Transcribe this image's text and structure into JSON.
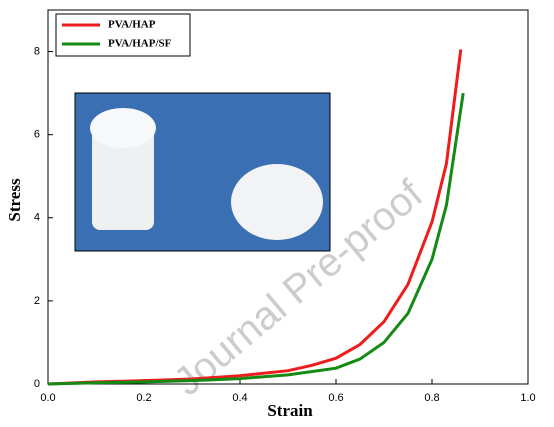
{
  "chart_data": {
    "type": "line",
    "xlabel": "Strain",
    "ylabel": "Stress",
    "annotation": "Journal Pre-proof",
    "xlim": [
      0,
      1
    ],
    "ylim": [
      0,
      9
    ],
    "xticks": [
      {
        "value": 0,
        "label": "0.0"
      },
      0.2,
      0.4,
      0.6,
      0.8,
      {
        "value": 1,
        "label": "1.0"
      }
    ],
    "yticks": [
      0,
      2,
      4,
      6,
      8
    ],
    "legend": "top-left",
    "series": [
      {
        "name": "PVA/HAP",
        "color": "#ee1c1c",
        "x": [
          0,
          0.1,
          0.2,
          0.3,
          0.4,
          0.5,
          0.55,
          0.6,
          0.65,
          0.7,
          0.75,
          0.8,
          0.83,
          0.86
        ],
        "values": [
          0,
          0.05,
          0.08,
          0.12,
          0.2,
          0.32,
          0.45,
          0.62,
          0.95,
          1.5,
          2.4,
          3.9,
          5.3,
          8.05
        ]
      },
      {
        "name": "PVA/HAP/SF",
        "color": "#138a13",
        "x": [
          0,
          0.1,
          0.2,
          0.3,
          0.4,
          0.5,
          0.6,
          0.65,
          0.7,
          0.75,
          0.8,
          0.83,
          0.865
        ],
        "values": [
          0,
          0.03,
          0.05,
          0.08,
          0.13,
          0.22,
          0.38,
          0.6,
          1.0,
          1.7,
          3.0,
          4.3,
          7.0
        ]
      }
    ]
  }
}
